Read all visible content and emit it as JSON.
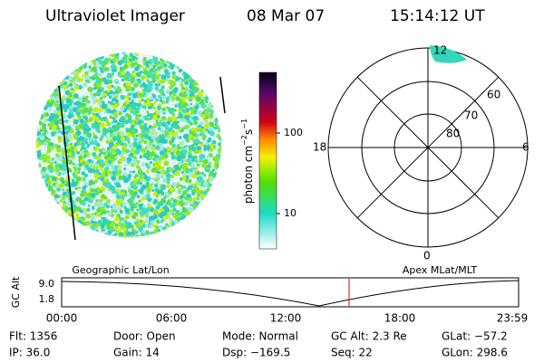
{
  "header": {
    "title": "Ultraviolet Imager",
    "date": "08 Mar 07",
    "time": "15:14:12 UT"
  },
  "colorbar": {
    "label": [
      "photon cm",
      "−2",
      "s",
      "−1"
    ],
    "ticks": [
      "100",
      "10"
    ]
  },
  "polar": {
    "labels": [
      "12",
      "18",
      "6",
      "0",
      "60",
      "70",
      "80"
    ]
  },
  "panel_labels": {
    "left": "Geographic Lat/Lon",
    "right": "Apex MLat/MLT"
  },
  "altitude": {
    "label": "GC Alt",
    "yticks": [
      "9.0",
      "1.8"
    ],
    "xticks": [
      "00:00",
      "06:00",
      "12:00",
      "18:00",
      "23:59"
    ]
  },
  "info": [
    [
      "Flt: 1356",
      "IP: 36.0"
    ],
    [
      "Door: Open",
      "Gain: 14"
    ],
    [
      "Mode: Normal",
      "Dsp: −169.5"
    ],
    [
      "GC Alt: 2.3 Re",
      "Seq: 22"
    ],
    [
      "GLat: −57.2",
      "GLon: 298.6"
    ]
  ]
}
